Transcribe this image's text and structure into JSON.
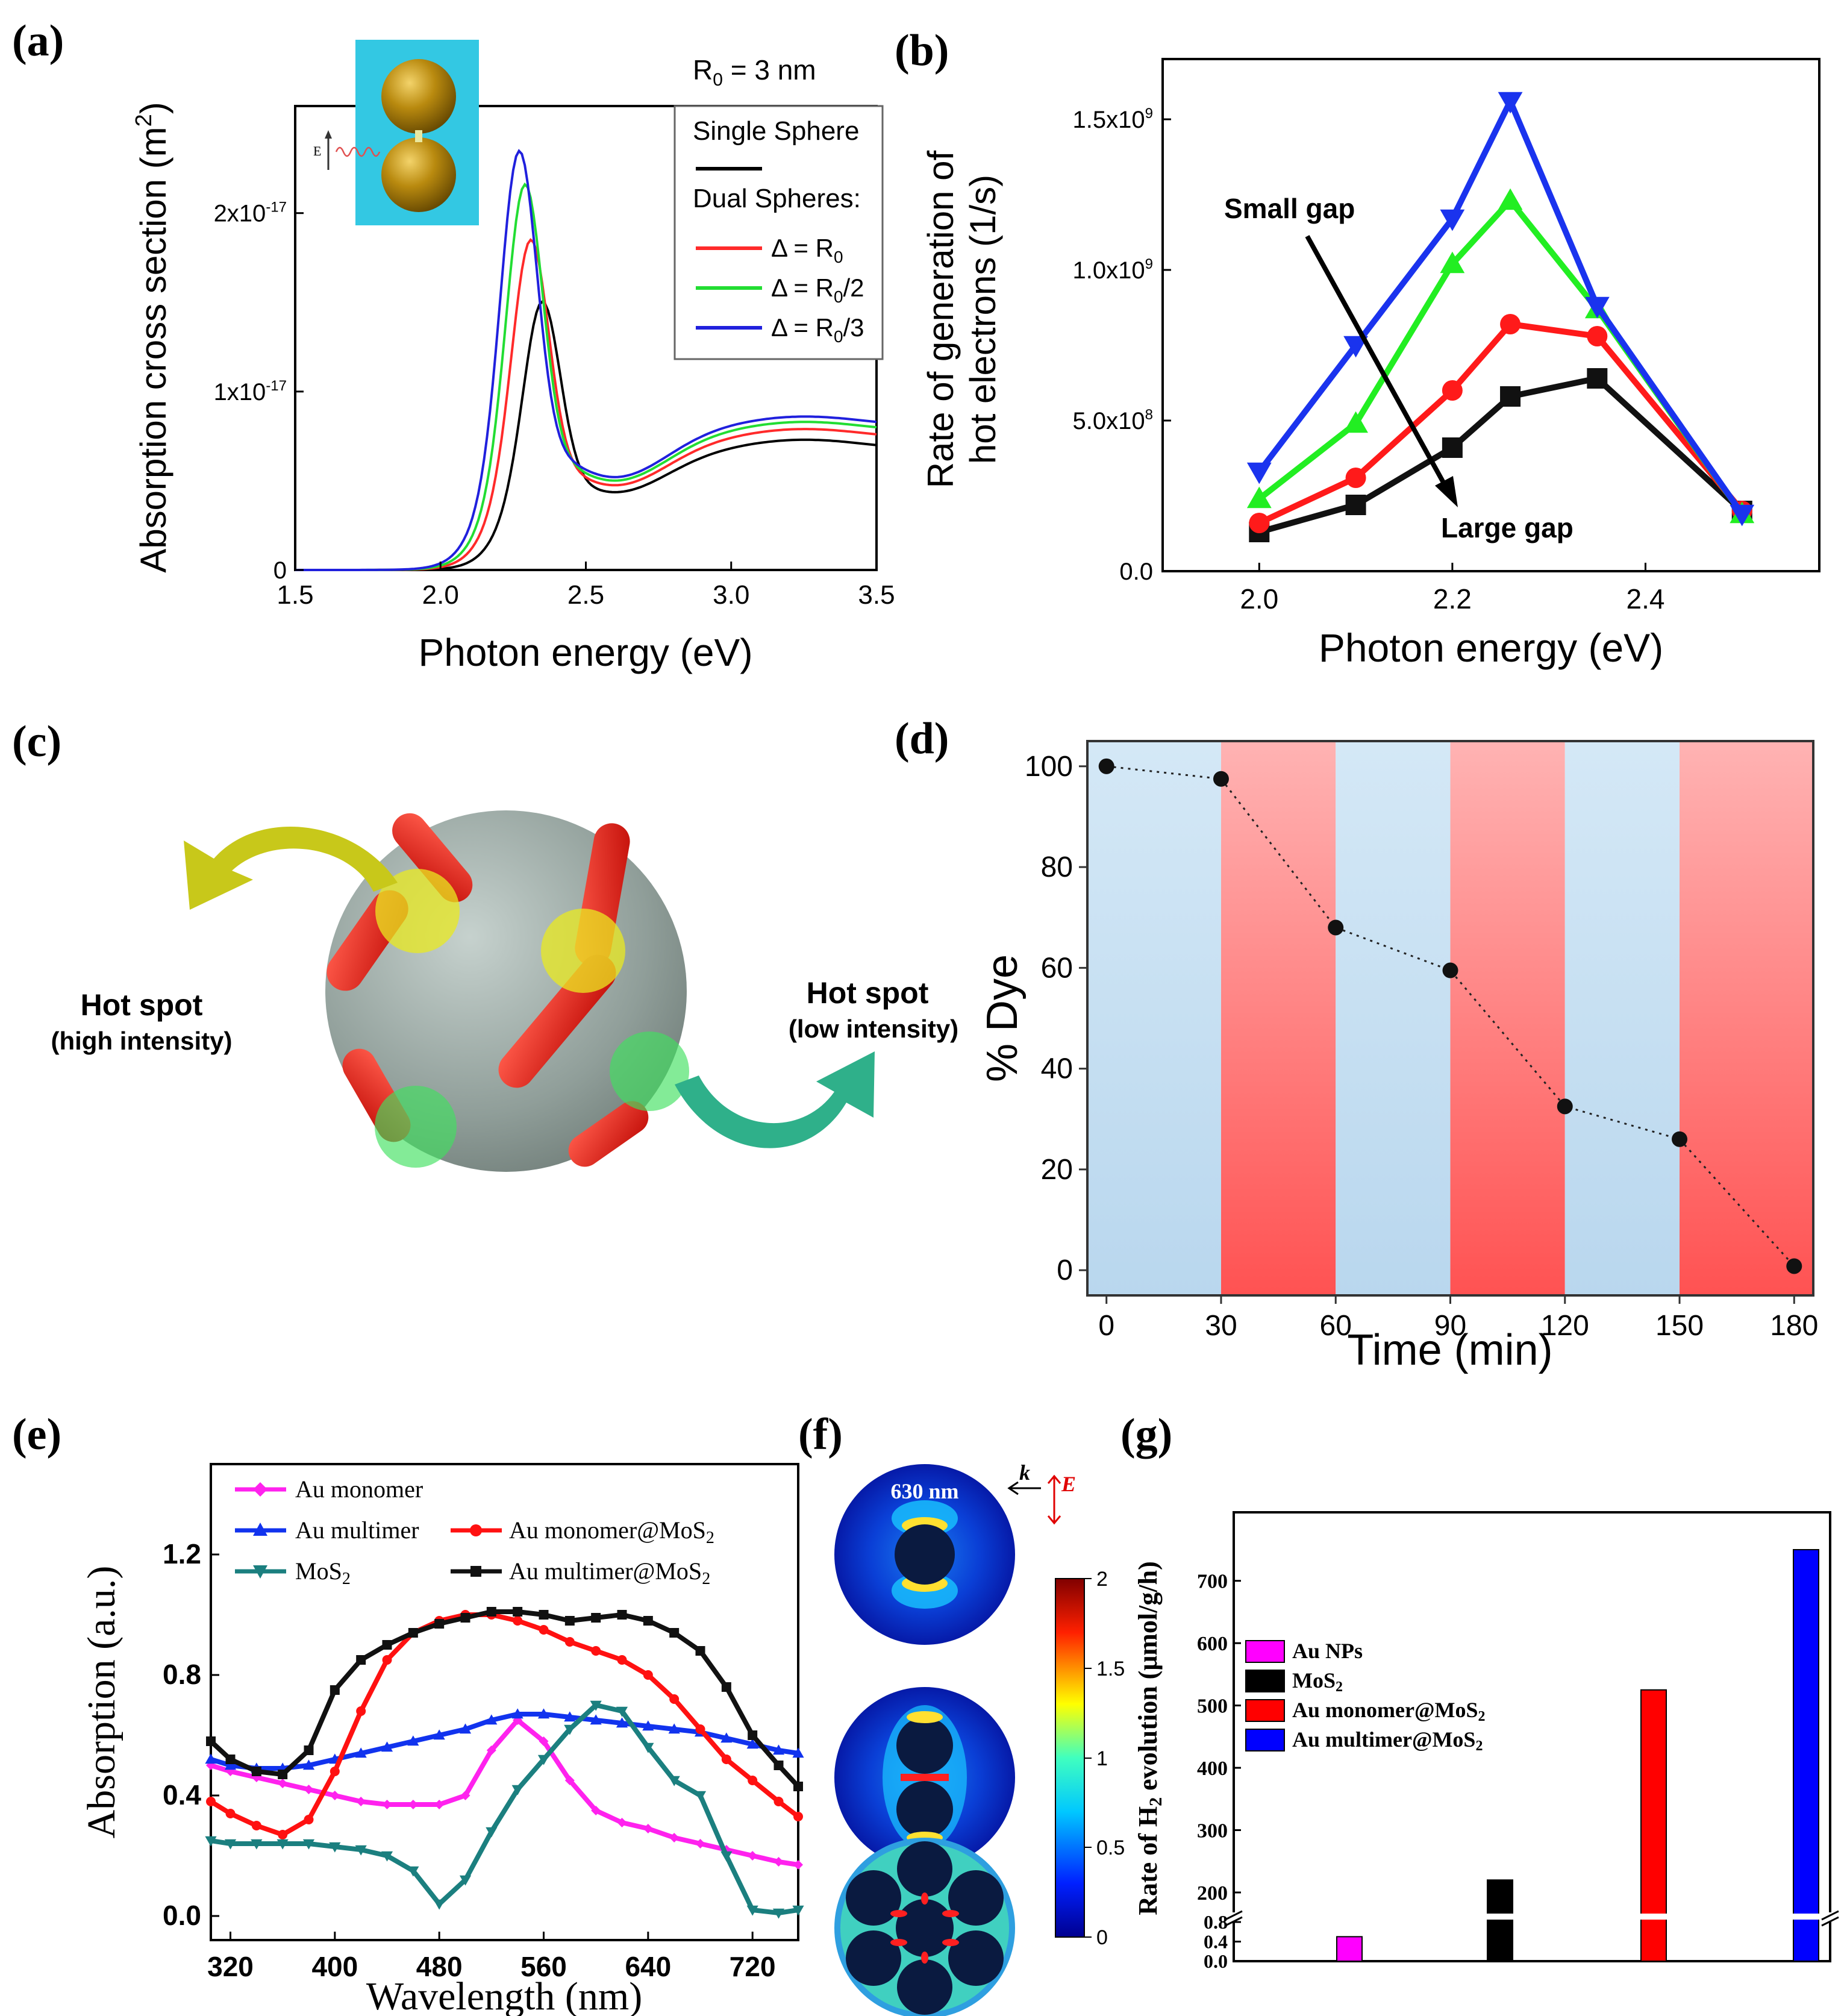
{
  "chart_data": [
    {
      "panel": "(a)",
      "type": "line",
      "xlabel": "Photon energy (eV)",
      "ylabel": "Absorption cross section (m",
      "ylabel_sup": "2",
      "ylabel_end": ")",
      "xlim": [
        1.5,
        3.5
      ],
      "ylim": [
        0,
        2.6
      ],
      "xticks": [
        1.5,
        2.0,
        2.5,
        3.0,
        3.5
      ],
      "xtick_labels": [
        "1.5",
        "2.0",
        "2.5",
        "3.0",
        "3.5"
      ],
      "yticks": [
        0,
        1,
        2
      ],
      "ytick_labels": [
        {
          "base": "0",
          "exp": ""
        },
        {
          "base": "1x10",
          "exp": "-17"
        },
        {
          "base": "2x10",
          "exp": "-17"
        }
      ],
      "legend_header": "R",
      "legend_header_sub": "0",
      "legend_header_rest": " = 3 nm",
      "legend_single": "Single Sphere",
      "legend_dual": "Dual Spheres:",
      "inset_label": "E",
      "series": [
        {
          "name": "Single Sphere",
          "label": "",
          "color": "#000000",
          "peak": 2.35,
          "amp": 1.4
        },
        {
          "name": "Δ = R0",
          "label": "Δ = R",
          "sub": "0",
          "rest": "",
          "color": "#ff2a2a",
          "peak": 2.31,
          "amp": 1.71
        },
        {
          "name": "Δ = R0/2",
          "label": "Δ = R",
          "sub": "0",
          "rest": "/2",
          "color": "#22dd33",
          "peak": 2.29,
          "amp": 2.0
        },
        {
          "name": "Δ = R0/3",
          "label": "Δ = R",
          "sub": "0",
          "rest": "/3",
          "color": "#2020dd",
          "peak": 2.27,
          "amp": 2.17
        }
      ]
    },
    {
      "panel": "(b)",
      "type": "line",
      "xlabel": "Photon energy (eV)",
      "ylabel_line1": "Rate of generation of",
      "ylabel_line2": "hot electrons (1/s)",
      "xlim": [
        1.9,
        2.58
      ],
      "ylim": [
        0,
        1.7
      ],
      "xticks": [
        2.0,
        2.2,
        2.4
      ],
      "xtick_labels": [
        "2.0",
        "2.2",
        "2.4"
      ],
      "yticks": [
        0,
        0.5,
        1.0,
        1.5
      ],
      "ytick_labels": [
        {
          "base": "0.0",
          "exp": ""
        },
        {
          "base": "5.0x10",
          "exp": "8"
        },
        {
          "base": "1.0x10",
          "exp": "9"
        },
        {
          "base": "1.5x10",
          "exp": "9"
        }
      ],
      "x": [
        2.0,
        2.1,
        2.2,
        2.26,
        2.35,
        2.5
      ],
      "series": [
        {
          "name": "black",
          "marker": "square",
          "color": "#111111",
          "values": [
            0.13,
            0.22,
            0.41,
            0.58,
            0.64,
            0.2
          ]
        },
        {
          "name": "red",
          "marker": "circle",
          "color": "#ff1a1a",
          "values": [
            0.16,
            0.31,
            0.6,
            0.82,
            0.78,
            0.2
          ]
        },
        {
          "name": "green",
          "marker": "triangle-up",
          "color": "#22ee22",
          "values": [
            0.24,
            0.49,
            1.02,
            1.23,
            0.87,
            0.19
          ]
        },
        {
          "name": "blue",
          "marker": "triangle-down",
          "color": "#1a33ee",
          "values": [
            0.33,
            0.75,
            1.17,
            1.56,
            0.88,
            0.19
          ]
        }
      ],
      "annotations": [
        "Small gap",
        "Large gap"
      ]
    },
    {
      "panel": "(c)",
      "type": "diagram",
      "labels": [
        "Hot spot",
        "(high intensity)",
        "Hot spot",
        "(low intensity)"
      ]
    },
    {
      "panel": "(d)",
      "type": "scatter",
      "xlabel": "Time (min)",
      "ylabel": "% Dye",
      "xlim": [
        -5,
        185
      ],
      "ylim": [
        -5,
        105
      ],
      "xticks": [
        0,
        30,
        60,
        90,
        120,
        150,
        180
      ],
      "yticks": [
        0,
        20,
        40,
        60,
        80,
        100
      ],
      "x": [
        0,
        30,
        60,
        90,
        120,
        150,
        180
      ],
      "values": [
        100,
        97.5,
        68,
        59.5,
        32.5,
        26,
        0.8
      ],
      "bands": [
        {
          "from": -5,
          "to": 30,
          "kind": "blue"
        },
        {
          "from": 30,
          "to": 60,
          "kind": "red"
        },
        {
          "from": 60,
          "to": 90,
          "kind": "blue"
        },
        {
          "from": 90,
          "to": 120,
          "kind": "red"
        },
        {
          "from": 120,
          "to": 150,
          "kind": "blue"
        },
        {
          "from": 150,
          "to": 185,
          "kind": "red"
        }
      ]
    },
    {
      "panel": "(e)",
      "type": "line",
      "xlabel": "Wavelength (nm)",
      "ylabel": "Absorption (a.u.)",
      "xlim": [
        305,
        755
      ],
      "ylim": [
        -0.08,
        1.5
      ],
      "xticks": [
        320,
        400,
        480,
        560,
        640,
        720
      ],
      "yticks": [
        0.0,
        0.4,
        0.8,
        1.2
      ],
      "ytick_labels": [
        "0.0",
        "0.4",
        "0.8",
        "1.2"
      ],
      "x": [
        305,
        320,
        340,
        360,
        380,
        400,
        420,
        440,
        460,
        480,
        500,
        520,
        540,
        560,
        580,
        600,
        620,
        640,
        660,
        680,
        700,
        720,
        740,
        755
      ],
      "series": [
        {
          "name": "Au monomer",
          "marker": "diamond",
          "color": "#ff22ee",
          "values": [
            0.5,
            0.48,
            0.46,
            0.44,
            0.42,
            0.4,
            0.38,
            0.37,
            0.37,
            0.37,
            0.4,
            0.55,
            0.65,
            0.58,
            0.45,
            0.35,
            0.31,
            0.29,
            0.26,
            0.24,
            0.22,
            0.2,
            0.18,
            0.17
          ]
        },
        {
          "name": "Au multimer",
          "marker": "triangle",
          "color": "#1133ee",
          "values": [
            0.52,
            0.5,
            0.49,
            0.49,
            0.5,
            0.52,
            0.54,
            0.56,
            0.58,
            0.6,
            0.62,
            0.65,
            0.67,
            0.67,
            0.66,
            0.65,
            0.64,
            0.63,
            0.62,
            0.61,
            0.59,
            0.57,
            0.55,
            0.54
          ]
        },
        {
          "name": "Au monomer@MoS2",
          "label": "Au monomer@MoS",
          "sub": "2",
          "marker": "circle",
          "color": "#ff1111",
          "values": [
            0.38,
            0.34,
            0.3,
            0.27,
            0.32,
            0.48,
            0.68,
            0.85,
            0.94,
            0.98,
            1.0,
            1.0,
            0.98,
            0.95,
            0.91,
            0.88,
            0.85,
            0.8,
            0.72,
            0.62,
            0.52,
            0.45,
            0.38,
            0.33
          ]
        },
        {
          "name": "MoS2",
          "label": "MoS",
          "sub": "2",
          "marker": "triangle-down",
          "color": "#1b7f7f",
          "values": [
            0.25,
            0.24,
            0.24,
            0.24,
            0.24,
            0.23,
            0.22,
            0.2,
            0.15,
            0.04,
            0.12,
            0.28,
            0.42,
            0.52,
            0.62,
            0.7,
            0.68,
            0.56,
            0.45,
            0.4,
            0.2,
            0.02,
            0.01,
            0.02
          ]
        },
        {
          "name": "Au multimer@MoS2",
          "label": "Au multimer@MoS",
          "sub": "2",
          "marker": "square",
          "color": "#111111",
          "values": [
            0.58,
            0.52,
            0.48,
            0.47,
            0.55,
            0.75,
            0.85,
            0.9,
            0.94,
            0.97,
            0.99,
            1.01,
            1.01,
            1.0,
            0.98,
            0.99,
            1.0,
            0.98,
            0.94,
            0.88,
            0.76,
            0.6,
            0.5,
            0.43
          ]
        }
      ]
    },
    {
      "panel": "(f)",
      "type": "heatmap",
      "wavelength_label": "630 nm",
      "k_label": "k",
      "e_label": "E",
      "colorbar_ticks": [
        "2",
        "1.5",
        "1",
        "0.5",
        "0"
      ]
    },
    {
      "panel": "(g)",
      "type": "bar",
      "ylabel": "Rate of H",
      "ylabel_sub": "2",
      "ylabel_rest": " evolution (μmol/g/h)",
      "categories": [
        "Au NPs",
        "MoS2",
        "Au monomer@MoS2",
        "Au multimer@MoS2"
      ],
      "values": [
        0.5,
        220,
        525,
        750
      ],
      "colors": [
        "#ff00ff",
        "#000000",
        "#ff0000",
        "#0000ff"
      ],
      "legend": [
        {
          "label": "Au NPs",
          "sub": ""
        },
        {
          "label": "MoS",
          "sub": "2"
        },
        {
          "label": "Au monomer@MoS",
          "sub": "2"
        },
        {
          "label": "Au multimer@MoS",
          "sub": "2"
        }
      ],
      "yticks_low": [
        "0.0",
        "0.4",
        "0.8"
      ],
      "yticks_high": [
        "200",
        "300",
        "400",
        "500",
        "600",
        "700"
      ],
      "axis_break": [
        0.8,
        170
      ]
    }
  ]
}
